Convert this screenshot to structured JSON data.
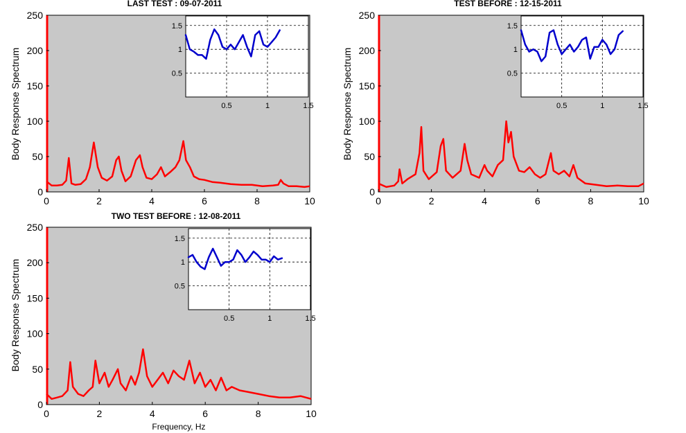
{
  "chart_data": [
    {
      "type": "line",
      "title": "LAST TEST : 09-07-2011",
      "ylabel": "Body Response Spectrum",
      "xlabel": "",
      "xlim": [
        0,
        10
      ],
      "ylim": [
        0,
        250
      ],
      "xticks": [
        "0",
        "2",
        "4",
        "6",
        "8",
        "10"
      ],
      "yticks": [
        "0",
        "50",
        "100",
        "150",
        "200",
        "250"
      ],
      "background": "#c8c8c8",
      "series": [
        {
          "color": "#ff0000",
          "x": [
            0,
            0.2,
            0.4,
            0.6,
            0.75,
            0.85,
            0.95,
            1.1,
            1.3,
            1.5,
            1.65,
            1.8,
            1.95,
            2.1,
            2.3,
            2.5,
            2.65,
            2.75,
            2.85,
            3.0,
            3.2,
            3.4,
            3.55,
            3.65,
            3.8,
            4.0,
            4.2,
            4.35,
            4.5,
            4.7,
            4.9,
            5.05,
            5.2,
            5.3,
            5.45,
            5.6,
            5.8,
            6.0,
            6.3,
            6.6,
            7.0,
            7.4,
            7.8,
            8.2,
            8.6,
            8.8,
            8.9,
            9.0,
            9.2,
            9.5,
            9.8,
            10
          ],
          "y": [
            15,
            9,
            9,
            10,
            16,
            48,
            12,
            10,
            11,
            18,
            35,
            70,
            35,
            20,
            16,
            22,
            45,
            50,
            30,
            15,
            22,
            45,
            52,
            35,
            20,
            18,
            25,
            35,
            22,
            28,
            35,
            45,
            72,
            45,
            35,
            22,
            18,
            17,
            14,
            13,
            11,
            10,
            10,
            8,
            9,
            10,
            17,
            12,
            8,
            8,
            7,
            8
          ]
        }
      ],
      "inset": {
        "xlim": [
          0,
          1.5
        ],
        "ylim": [
          0,
          1.7
        ],
        "xticks": [
          "0.5",
          "1",
          "1.5"
        ],
        "yticks": [
          "0.5",
          "1",
          "1.5"
        ],
        "color": "#0000cc",
        "x": [
          0,
          0.05,
          0.1,
          0.15,
          0.2,
          0.25,
          0.3,
          0.35,
          0.4,
          0.45,
          0.5,
          0.55,
          0.6,
          0.65,
          0.7,
          0.75,
          0.8,
          0.85,
          0.9,
          0.95,
          1.0,
          1.05,
          1.1,
          1.15
        ],
        "y": [
          1.3,
          1.0,
          0.95,
          0.88,
          0.88,
          0.8,
          1.2,
          1.42,
          1.3,
          1.05,
          1.0,
          1.1,
          1.0,
          1.15,
          1.3,
          1.05,
          0.85,
          1.3,
          1.38,
          1.1,
          1.05,
          1.15,
          1.25,
          1.4
        ]
      }
    },
    {
      "type": "line",
      "title": "TEST BEFORE : 12-15-2011",
      "ylabel": "Body Response Spectrum",
      "xlabel": "",
      "xlim": [
        0,
        10
      ],
      "ylim": [
        0,
        250
      ],
      "xticks": [
        "0",
        "2",
        "4",
        "6",
        "8",
        "10"
      ],
      "yticks": [
        "0",
        "50",
        "100",
        "150",
        "200",
        "250"
      ],
      "background": "#c8c8c8",
      "series": [
        {
          "color": "#ff0000",
          "x": [
            0,
            0.3,
            0.6,
            0.75,
            0.8,
            0.9,
            1.1,
            1.4,
            1.55,
            1.62,
            1.7,
            1.9,
            2.2,
            2.35,
            2.45,
            2.55,
            2.8,
            3.1,
            3.25,
            3.35,
            3.5,
            3.8,
            4.0,
            4.1,
            4.3,
            4.5,
            4.7,
            4.82,
            4.9,
            5.0,
            5.1,
            5.3,
            5.5,
            5.7,
            5.9,
            6.1,
            6.3,
            6.5,
            6.6,
            6.8,
            7.0,
            7.2,
            7.35,
            7.5,
            7.8,
            8.2,
            8.6,
            9.0,
            9.4,
            9.8,
            10
          ],
          "y": [
            12,
            7,
            9,
            15,
            32,
            12,
            18,
            25,
            55,
            92,
            30,
            18,
            28,
            65,
            75,
            30,
            20,
            30,
            68,
            45,
            25,
            20,
            38,
            30,
            22,
            38,
            45,
            100,
            70,
            85,
            50,
            30,
            28,
            35,
            25,
            20,
            25,
            55,
            30,
            25,
            30,
            22,
            38,
            20,
            12,
            10,
            8,
            9,
            8,
            8,
            12
          ]
        }
      ],
      "inset": {
        "xlim": [
          0,
          1.5
        ],
        "ylim": [
          0,
          1.7
        ],
        "xticks": [
          "0.5",
          "1",
          "1.5"
        ],
        "yticks": [
          "0.5",
          "1",
          "1.5"
        ],
        "color": "#0000cc",
        "x": [
          0,
          0.05,
          0.1,
          0.15,
          0.2,
          0.25,
          0.3,
          0.35,
          0.4,
          0.45,
          0.5,
          0.55,
          0.6,
          0.65,
          0.7,
          0.75,
          0.8,
          0.85,
          0.9,
          0.95,
          1.0,
          1.05,
          1.1,
          1.15,
          1.2,
          1.25
        ],
        "y": [
          1.4,
          1.1,
          0.95,
          1.0,
          0.95,
          0.75,
          0.85,
          1.35,
          1.4,
          1.1,
          0.9,
          1.0,
          1.1,
          0.95,
          1.05,
          1.2,
          1.25,
          0.8,
          1.05,
          1.05,
          1.2,
          1.1,
          0.9,
          1.0,
          1.3,
          1.38
        ]
      }
    },
    {
      "type": "line",
      "title": "TWO TEST BEFORE : 12-08-2011",
      "ylabel": "Body Response Spectrum",
      "xlabel": "Frequency, Hz",
      "xlim": [
        0,
        10
      ],
      "ylim": [
        0,
        250
      ],
      "xticks": [
        "0",
        "2",
        "4",
        "6",
        "8",
        "10"
      ],
      "yticks": [
        "0",
        "50",
        "100",
        "150",
        "200",
        "250"
      ],
      "background": "#c8c8c8",
      "series": [
        {
          "color": "#ff0000",
          "x": [
            0,
            0.2,
            0.4,
            0.6,
            0.8,
            0.9,
            1.0,
            1.2,
            1.4,
            1.6,
            1.75,
            1.85,
            2.0,
            2.2,
            2.35,
            2.5,
            2.7,
            2.8,
            3.0,
            3.2,
            3.35,
            3.5,
            3.65,
            3.8,
            4.0,
            4.2,
            4.4,
            4.6,
            4.8,
            5.0,
            5.2,
            5.4,
            5.6,
            5.8,
            6.0,
            6.2,
            6.4,
            6.6,
            6.8,
            7.0,
            7.3,
            7.6,
            8.0,
            8.4,
            8.8,
            9.2,
            9.6,
            10
          ],
          "y": [
            15,
            8,
            10,
            12,
            20,
            60,
            25,
            15,
            12,
            20,
            25,
            62,
            30,
            45,
            25,
            35,
            50,
            30,
            20,
            40,
            28,
            45,
            78,
            40,
            25,
            35,
            45,
            30,
            48,
            40,
            35,
            62,
            30,
            45,
            25,
            35,
            20,
            38,
            20,
            25,
            20,
            18,
            15,
            12,
            10,
            10,
            12,
            8
          ]
        }
      ],
      "inset": {
        "xlim": [
          0,
          1.5
        ],
        "ylim": [
          0,
          1.7
        ],
        "xticks": [
          "0.5",
          "1",
          "1.5"
        ],
        "yticks": [
          "0.5",
          "1",
          "1.5"
        ],
        "color": "#0000cc",
        "x": [
          0,
          0.05,
          0.1,
          0.15,
          0.2,
          0.25,
          0.3,
          0.35,
          0.4,
          0.45,
          0.5,
          0.55,
          0.6,
          0.65,
          0.7,
          0.75,
          0.8,
          0.85,
          0.9,
          0.95,
          1.0,
          1.05,
          1.1,
          1.15
        ],
        "y": [
          1.1,
          1.15,
          1.0,
          0.9,
          0.85,
          1.1,
          1.28,
          1.1,
          0.92,
          1.0,
          1.0,
          1.05,
          1.25,
          1.15,
          1.0,
          1.1,
          1.22,
          1.15,
          1.05,
          1.05,
          1.0,
          1.12,
          1.05,
          1.08
        ]
      }
    }
  ]
}
